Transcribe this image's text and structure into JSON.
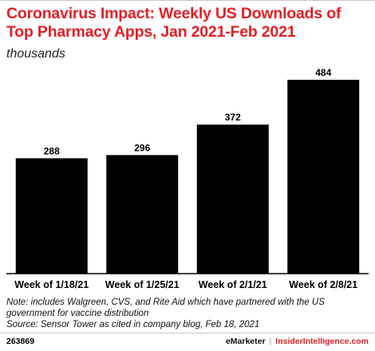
{
  "header": {
    "title": "Coronavirus Impact: Weekly US Downloads of Top Pharmacy Apps, Jan 2021-Feb 2021",
    "subtitle": "thousands"
  },
  "chart_data": {
    "type": "bar",
    "categories": [
      "Week of 1/18/21",
      "Week of 1/25/21",
      "Week of 2/1/21",
      "Week of 2/8/21"
    ],
    "values": [
      288,
      296,
      372,
      484
    ],
    "value_labels": [
      "288",
      "296",
      "372",
      "484"
    ],
    "title": "Coronavirus Impact: Weekly US Downloads of Top Pharmacy Apps, Jan 2021-Feb 2021",
    "ylabel": "thousands",
    "ylim": [
      0,
      484
    ],
    "grid": false,
    "bar_color": "#000000"
  },
  "notes": {
    "note": "Note: includes Walgreen, CVS, and Rite Aid which have partnered with the US government for vaccine distribution",
    "source": "Source: Sensor Tower as cited in company blog, Feb 18, 2021"
  },
  "footer": {
    "id": "263869",
    "brand": "eMarketer",
    "separator": "|",
    "site": "InsiderIntelligence.com"
  },
  "colors": {
    "title": "#e41e26",
    "bars": "#000000"
  }
}
